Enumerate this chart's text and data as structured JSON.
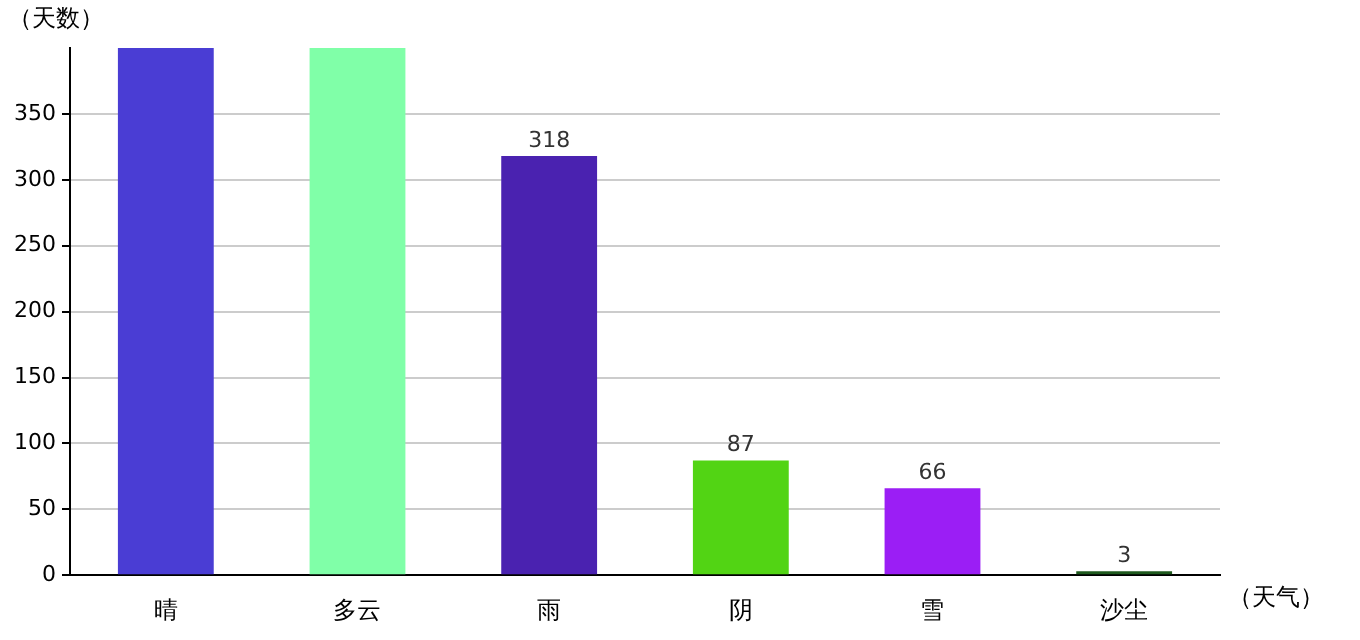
{
  "chart_data": {
    "type": "bar",
    "xlabel": "（天气）",
    "ylabel": "（天数）",
    "categories": [
      "晴",
      "多云",
      "雨",
      "阴",
      "雪",
      "沙尘"
    ],
    "values": [
      400,
      400,
      318,
      87,
      66,
      3
    ],
    "colors": [
      "#4a3dd4",
      "#80ffa8",
      "#4a22b0",
      "#52d414",
      "#9b1ef5",
      "#1f5a1e"
    ],
    "value_labels": [
      null,
      null,
      "318",
      "87",
      "66",
      "3"
    ],
    "ylim": [
      0,
      400
    ],
    "yticks": [
      0,
      50,
      100,
      150,
      200,
      250,
      300,
      350
    ],
    "grid": "y",
    "legend": false
  }
}
